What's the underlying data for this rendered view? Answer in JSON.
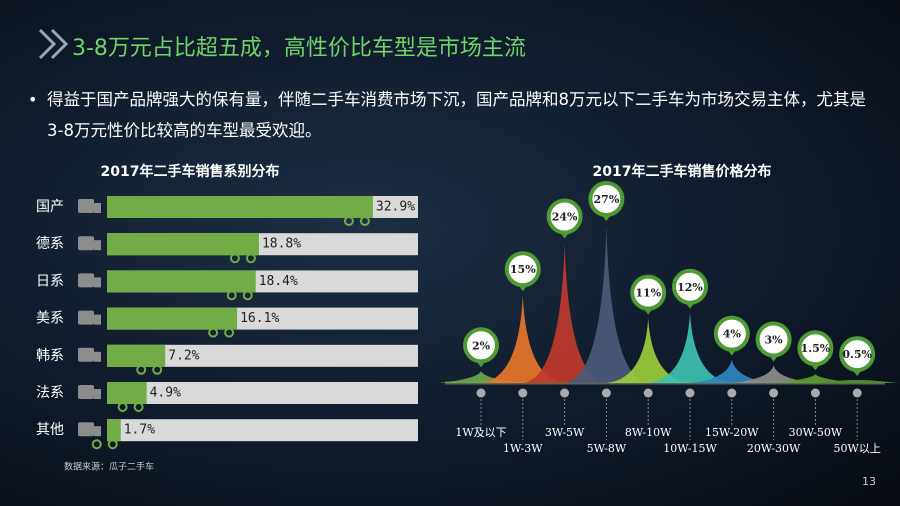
{
  "slide": {
    "title": "3-8万元占比超五成，高性价比车型是市场主流",
    "bullet": "得益于国产品牌强大的保有量，伴随二手车消费市场下沉，国产品牌和8万元以下二手车为市场交易主体，尤其是3-8万元性价比较高的车型最受欢迎。",
    "source": "数据来源：瓜子二手车",
    "page": "13"
  },
  "chart_data": [
    {
      "type": "bar",
      "title": "2017年二手车销售系别分布",
      "categories": [
        "国产",
        "德系",
        "日系",
        "美系",
        "韩系",
        "法系",
        "其他"
      ],
      "values": [
        32.9,
        18.8,
        18.4,
        16.1,
        7.2,
        4.9,
        1.7
      ],
      "value_labels": [
        "32.9%",
        "18.8%",
        "18.4%",
        "16.1%",
        "7.2%",
        "4.9%",
        "1.7%"
      ],
      "color": "#70ad47"
    },
    {
      "type": "peak",
      "title": "2017年二手车销售价格分布",
      "categories": [
        "1W及以下",
        "1W-3W",
        "3W-5W",
        "5W-8W",
        "8W-10W",
        "10W-15W",
        "15W-20W",
        "20W-30W",
        "30W-50W",
        "50W以上"
      ],
      "values": [
        2,
        15,
        24,
        27,
        11,
        12,
        4,
        3,
        1.5,
        0.5
      ],
      "value_labels": [
        "2%",
        "15%",
        "24%",
        "27%",
        "11%",
        "12%",
        "4%",
        "3%",
        "1.5%",
        "0.5%"
      ],
      "colors": [
        "#6aa84f",
        "#e8762b",
        "#c0392b",
        "#4a5a78",
        "#9ccc3c",
        "#3cc0b0",
        "#2e86c1",
        "#8c8c8c",
        "#5aa02c",
        "#4c8f2a"
      ]
    }
  ]
}
